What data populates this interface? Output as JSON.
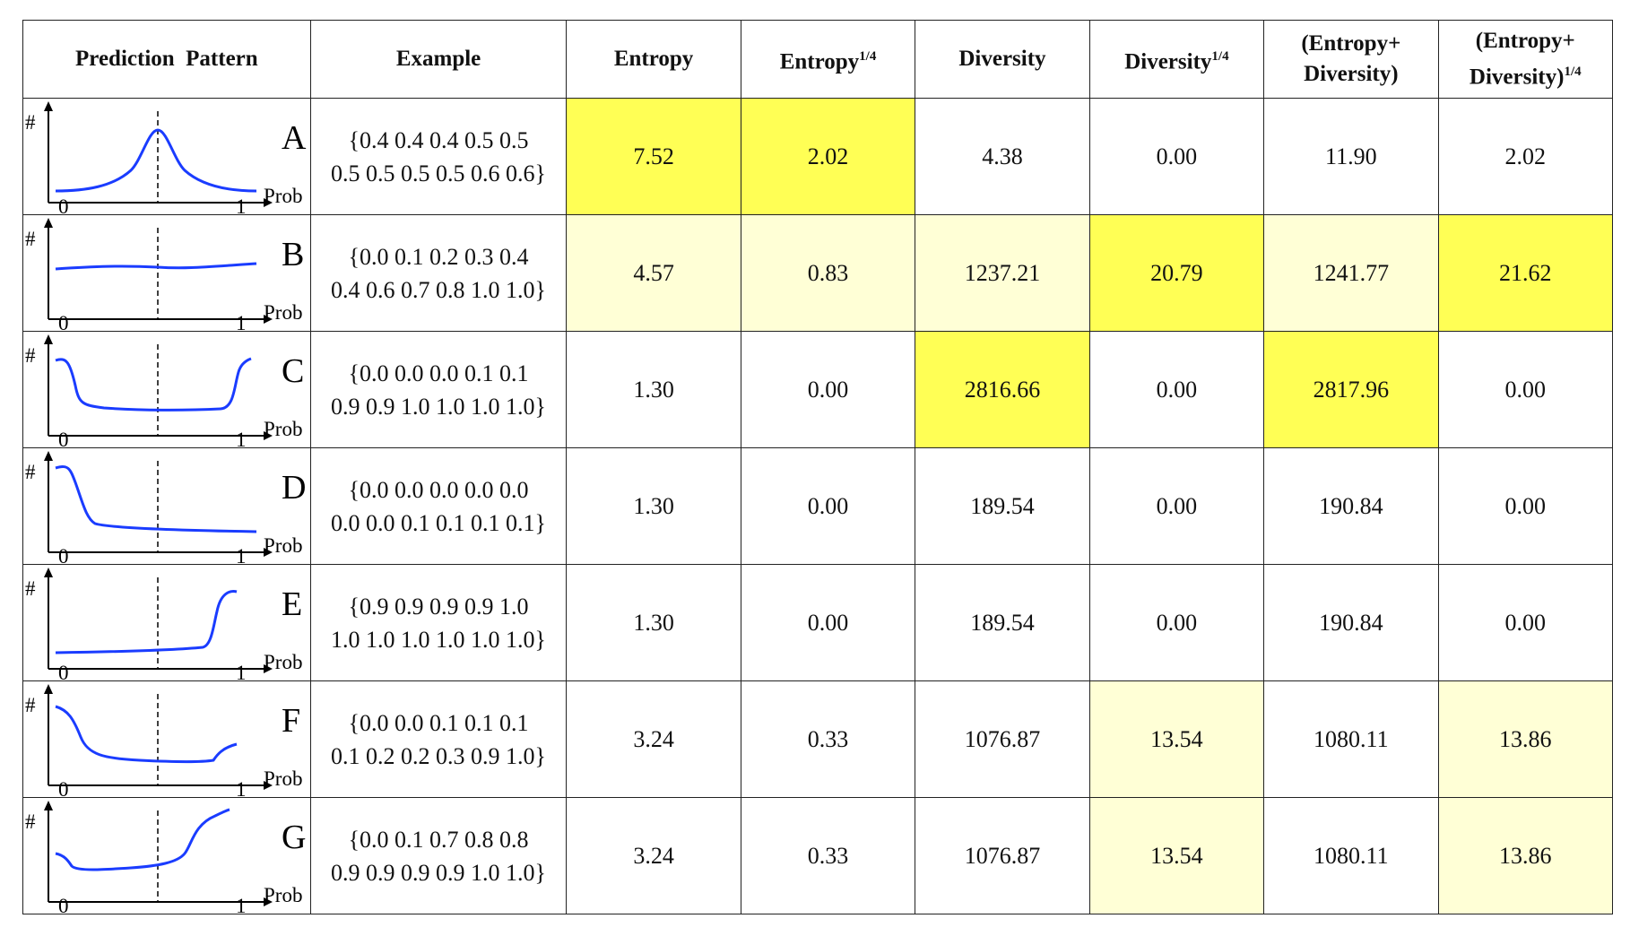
{
  "headers": {
    "pattern": "Prediction  Pattern",
    "example": "Example",
    "entropy": "Entropy",
    "entropy_q_base": "Entropy",
    "entropy_q_sup": "1/4",
    "diversity": "Diversity",
    "diversity_q_base": "Diversity",
    "diversity_q_sup": "1/4",
    "sum_line1": "(Entropy+",
    "sum_line2": "Diversity)",
    "sumq_line1": "(Entropy+",
    "sumq_line2_base": "Diversity)",
    "sumq_line2_sup": "1/4"
  },
  "axis": {
    "y_symbol": "#",
    "x_start": "0",
    "x_end": "1",
    "x_label": "Prob"
  },
  "colors": {
    "strong_highlight": "#ffff55",
    "light_highlight": "#ffffd6",
    "curve": "#1a3cff"
  },
  "rows": [
    {
      "letter": "A",
      "example_line1": "{0.4 0.4 0.4 0.5 0.5",
      "example_line2": "0.5 0.5 0.5 0.5 0.6 0.6}",
      "entropy": "7.52",
      "entropy_q": "2.02",
      "diversity": "4.38",
      "diversity_q": "0.00",
      "sum": "11.90",
      "sum_q": "2.02"
    },
    {
      "letter": "B",
      "example_line1": "{0.0 0.1 0.2 0.3 0.4",
      "example_line2": "0.4 0.6 0.7 0.8 1.0 1.0}",
      "entropy": "4.57",
      "entropy_q": "0.83",
      "diversity": "1237.21",
      "diversity_q": "20.79",
      "sum": "1241.77",
      "sum_q": "21.62"
    },
    {
      "letter": "C",
      "example_line1": "{0.0 0.0 0.0 0.1 0.1",
      "example_line2": "0.9 0.9 1.0 1.0 1.0 1.0}",
      "entropy": "1.30",
      "entropy_q": "0.00",
      "diversity": "2816.66",
      "diversity_q": "0.00",
      "sum": "2817.96",
      "sum_q": "0.00"
    },
    {
      "letter": "D",
      "example_line1": "{0.0 0.0 0.0 0.0 0.0",
      "example_line2": "0.0 0.0 0.1 0.1 0.1 0.1}",
      "entropy": "1.30",
      "entropy_q": "0.00",
      "diversity": "189.54",
      "diversity_q": "0.00",
      "sum": "190.84",
      "sum_q": "0.00"
    },
    {
      "letter": "E",
      "example_line1": "{0.9 0.9 0.9 0.9 1.0",
      "example_line2": "1.0 1.0 1.0 1.0 1.0 1.0}",
      "entropy": "1.30",
      "entropy_q": "0.00",
      "diversity": "189.54",
      "diversity_q": "0.00",
      "sum": "190.84",
      "sum_q": "0.00"
    },
    {
      "letter": "F",
      "example_line1": "{0.0 0.0 0.1 0.1 0.1",
      "example_line2": "0.1 0.2 0.2 0.3 0.9 1.0}",
      "entropy": "3.24",
      "entropy_q": "0.33",
      "diversity": "1076.87",
      "diversity_q": "13.54",
      "sum": "1080.11",
      "sum_q": "13.86"
    },
    {
      "letter": "G",
      "example_line1": "{0.0 0.1 0.7 0.8 0.8",
      "example_line2": "0.9 0.9 0.9 0.9 1.0 1.0}",
      "entropy": "3.24",
      "entropy_q": "0.33",
      "diversity": "1076.87",
      "diversity_q": "13.54",
      "sum": "1080.11",
      "sum_q": "13.86"
    }
  ]
}
